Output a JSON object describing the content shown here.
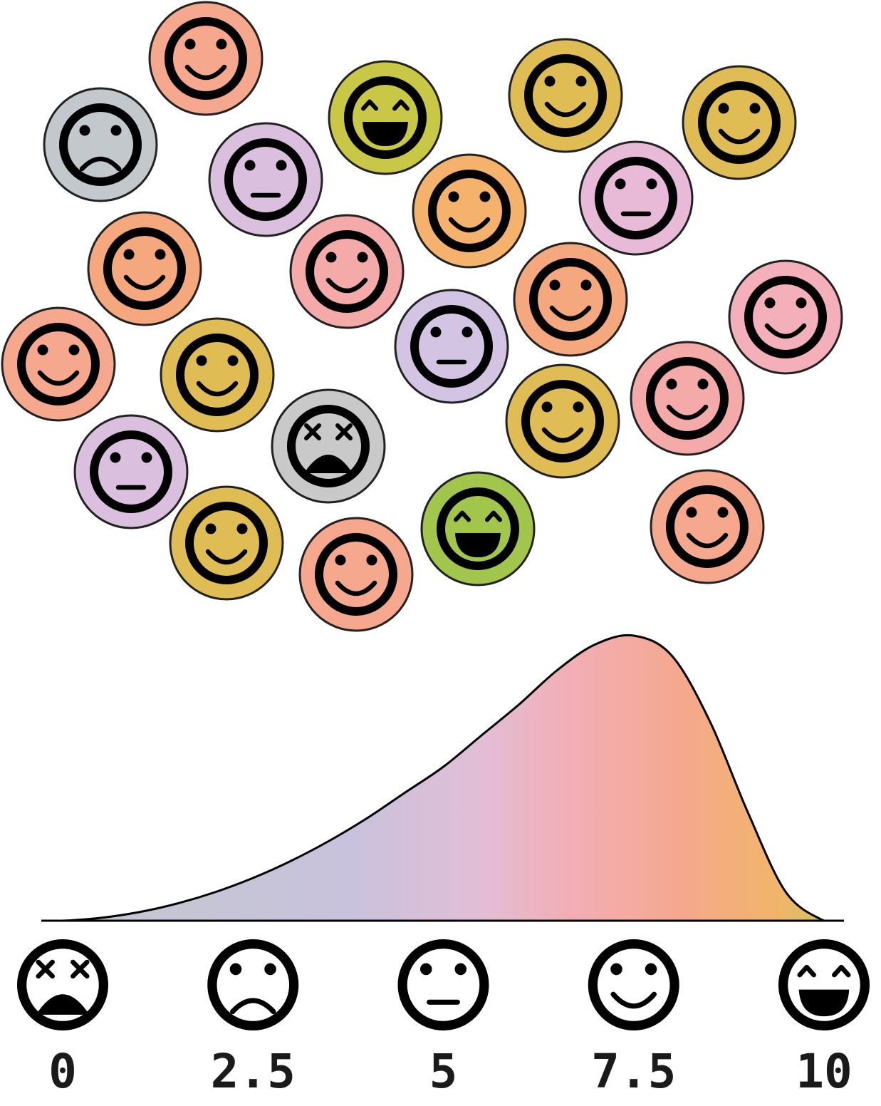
{
  "chart_data": {
    "type": "area",
    "title": "",
    "xlabel": "",
    "ylabel": "",
    "xlim": [
      0,
      10
    ],
    "ticks": [
      {
        "value": 0,
        "label": "0",
        "icon": "dead-face-icon"
      },
      {
        "value": 2.5,
        "label": "2.5",
        "icon": "sad-face-icon"
      },
      {
        "value": 5,
        "label": "5",
        "icon": "neutral-face-icon"
      },
      {
        "value": 7.5,
        "label": "7.5",
        "icon": "smile-face-icon"
      },
      {
        "value": 10,
        "label": "10",
        "icon": "grin-face-icon"
      }
    ],
    "density": {
      "x": [
        0,
        0.5,
        1,
        1.5,
        2,
        2.5,
        3,
        3.5,
        4,
        4.5,
        5,
        5.5,
        6,
        6.5,
        7,
        7.5,
        8,
        8.5,
        9,
        9.5,
        10
      ],
      "y": [
        0,
        0.01,
        0.03,
        0.06,
        0.1,
        0.15,
        0.21,
        0.28,
        0.36,
        0.45,
        0.54,
        0.65,
        0.76,
        0.88,
        0.97,
        1.0,
        0.93,
        0.7,
        0.38,
        0.1,
        0
      ]
    },
    "gradient_stops": [
      {
        "offset": 0,
        "color": "#c3c8cd"
      },
      {
        "offset": 0.38,
        "color": "#c8c2dc"
      },
      {
        "offset": 0.55,
        "color": "#e2bed6"
      },
      {
        "offset": 0.66,
        "color": "#f2aeb6"
      },
      {
        "offset": 0.8,
        "color": "#f5a88e"
      },
      {
        "offset": 0.92,
        "color": "#f1b56a"
      },
      {
        "offset": 1,
        "color": "#c8c655"
      }
    ],
    "ratings": [
      {
        "score": 7.2,
        "color": "#f5a88e"
      },
      {
        "score": 2.5,
        "color": "#c3c8cd"
      },
      {
        "score": 4.9,
        "color": "#dbbfde"
      },
      {
        "score": 9.7,
        "color": "#c8c846"
      },
      {
        "score": 7.6,
        "color": "#dfbd54"
      },
      {
        "score": 7.8,
        "color": "#dfbd54"
      },
      {
        "score": 7.4,
        "color": "#f4b26c"
      },
      {
        "score": 5.1,
        "color": "#e8bad8"
      },
      {
        "score": 7.3,
        "color": "#f5a87e"
      },
      {
        "score": 7.1,
        "color": "#f3aaa8"
      },
      {
        "score": 7.5,
        "color": "#f5a87e"
      },
      {
        "score": 7.0,
        "color": "#f4b0ba"
      },
      {
        "score": 7.2,
        "color": "#f5a88e"
      },
      {
        "score": 7.7,
        "color": "#dfbd54"
      },
      {
        "score": 5.0,
        "color": "#d2c4e2"
      },
      {
        "score": 7.3,
        "color": "#f3aaa8"
      },
      {
        "score": 7.9,
        "color": "#dfbd54"
      },
      {
        "score": 4.8,
        "color": "#dbbfde"
      },
      {
        "score": 0.3,
        "color": "#c9c9c9"
      },
      {
        "score": 7.6,
        "color": "#dfbd54"
      },
      {
        "score": 7.2,
        "color": "#f5a88e"
      },
      {
        "score": 9.8,
        "color": "#a2c64c"
      },
      {
        "score": 7.4,
        "color": "#f5a88e"
      }
    ]
  }
}
